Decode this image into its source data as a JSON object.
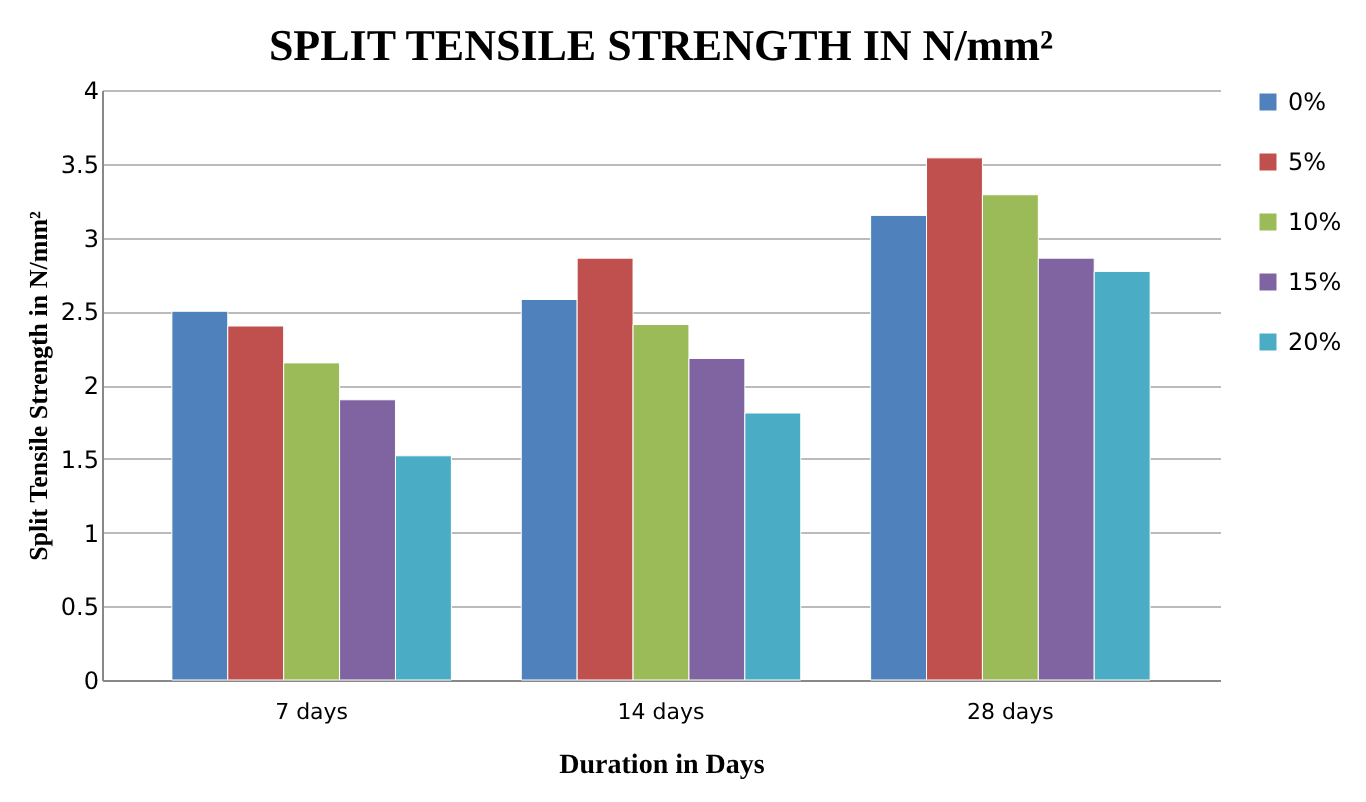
{
  "chart_data": {
    "type": "bar",
    "title": "SPLIT TENSILE STRENGTH IN N/mm²",
    "xlabel": "Duration in Days",
    "ylabel": "Split Tensile Strength in N/mm²",
    "categories": [
      "7 days",
      "14 days",
      "28 days"
    ],
    "series": [
      {
        "name": "0%",
        "color": "#4f81bd",
        "values": [
          2.5,
          2.58,
          3.15
        ]
      },
      {
        "name": "5%",
        "color": "#c0504d",
        "values": [
          2.4,
          2.86,
          3.54
        ]
      },
      {
        "name": "10%",
        "color": "#9bbb59",
        "values": [
          2.15,
          2.41,
          3.29
        ]
      },
      {
        "name": "15%",
        "color": "#8064a2",
        "values": [
          1.9,
          2.18,
          2.86
        ]
      },
      {
        "name": "20%",
        "color": "#4bacc6",
        "values": [
          1.52,
          1.81,
          2.77
        ]
      }
    ],
    "ylim": [
      0,
      4
    ],
    "yticks": [
      0,
      0.5,
      1,
      1.5,
      2,
      2.5,
      3,
      3.5,
      4
    ],
    "grid": "y",
    "legend": "right"
  }
}
